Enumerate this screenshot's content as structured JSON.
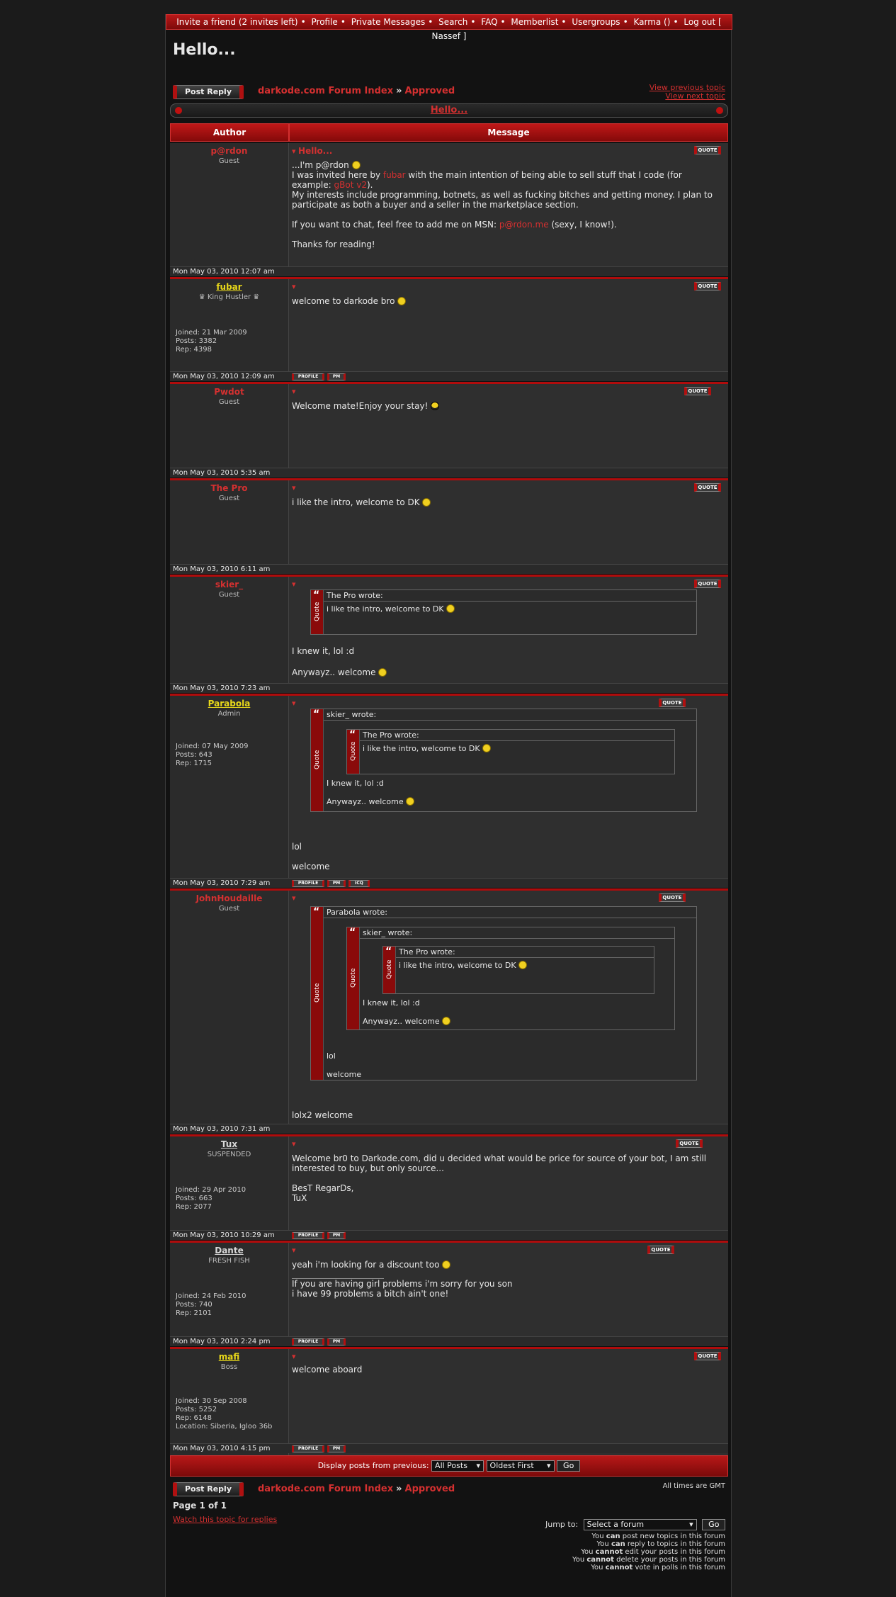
{
  "topnav": {
    "items": [
      "Invite a friend (2 invites left)",
      "Profile",
      "Private Messages",
      "Search",
      "FAQ",
      "Memberlist",
      "Usergroups",
      "Karma ()",
      "Log out [ Nassef ]"
    ]
  },
  "page_title": "Hello...",
  "post_reply_label": "Post Reply",
  "breadcrumb": {
    "forum_index": "darkode.com Forum Index",
    "separator": "»",
    "forum": "Approved"
  },
  "prev_topic": "View previous topic",
  "next_topic": "View next topic",
  "topic_title": "Hello...",
  "headers": {
    "author": "Author",
    "message": "Message"
  },
  "quote_label": "QUOTE",
  "profile_label": "PROFILE",
  "pm_label": "PM",
  "icq_label": "ICQ",
  "quote_word": "Quote",
  "posts": [
    {
      "author": "p@rdon",
      "rank": "Guest",
      "date": "Mon May 03, 2010 12:07 am",
      "subject": "Hello..."
    },
    {
      "author": "fubar",
      "rank": "♛ King Hustler ♛",
      "joined": "Joined: 21 Mar 2009",
      "posts": "Posts: 3382",
      "rep": "Rep: 4398",
      "date": "Mon May 03, 2010 12:09 am",
      "text": "welcome to darkode bro"
    },
    {
      "author": "Pwdot",
      "rank": "Guest",
      "date": "Mon May 03, 2010 5:35 am",
      "text": "Welcome mate!Enjoy your stay!"
    },
    {
      "author": "The Pro",
      "rank": "Guest",
      "date": "Mon May 03, 2010 6:11 am",
      "text": "i like the intro, welcome to DK"
    },
    {
      "author": "skier_",
      "rank": "Guest",
      "date": "Mon May 03, 2010 7:23 am",
      "text1": "I knew it, lol :d",
      "text2": "Anywayz.. welcome"
    },
    {
      "author": "Parabola",
      "rank": "Admin",
      "joined": "Joined: 07 May 2009",
      "posts": "Posts: 643",
      "rep": "Rep: 1715",
      "date": "Mon May 03, 2010 7:29 am",
      "text1": "lol",
      "text2": "welcome"
    },
    {
      "author": "JohnHoudaille",
      "rank": "Guest",
      "date": "Mon May 03, 2010 7:31 am",
      "text": "lolx2 welcome"
    },
    {
      "author": "Tux",
      "rank": "SUSPENDED",
      "joined": "Joined: 29 Apr 2010",
      "posts": "Posts: 663",
      "rep": "Rep: 2077",
      "date": "Mon May 03, 2010 10:29 am",
      "text1": "Welcome br0 to Darkode.com, did u decided what would be price for source of your bot, I am still interested to buy, but only source...",
      "text2": "BesT RegarDs,",
      "text3": "TuX"
    },
    {
      "author": "Dante",
      "rank": "FRESH FISH",
      "joined": "Joined: 24 Feb 2010",
      "posts": "Posts: 740",
      "rep": "Rep: 2101",
      "date": "Mon May 03, 2010 2:24 pm",
      "text": "yeah i'm looking for a discount too",
      "sig1": "If you are having girl problems i'm sorry for you son",
      "sig2": "i have 99 problems a bitch ain't one!"
    },
    {
      "author": "mafi",
      "rank": "Boss",
      "joined": "Joined: 30 Sep 2008",
      "posts": "Posts: 5252",
      "rep": "Rep: 6148",
      "location": "Location: Siberia, Igloo 36b",
      "date": "Mon May 03, 2010 4:15 pm",
      "text": "welcome aboard"
    }
  ],
  "intro": {
    "line1": "...I'm p@rdon",
    "line2a": "I was invited here by ",
    "line2link": "fubar",
    "line2b": " with the main intention of being able to sell stuff that I code (for example: ",
    "line2link2": "gBot v2",
    "line2c": ").",
    "line3": "My interests include programming, botnets, as well as fucking bitches and getting money. I plan to participate as both a buyer and a seller in the marketplace section.",
    "line4a": "If you want to chat, feel free to add me on MSN: ",
    "line4link": "p@rdon.me",
    "line4b": " (sexy, I know!).",
    "line5": "Thanks for reading!"
  },
  "quotes": {
    "pro_wrote": "The Pro wrote:",
    "skier_wrote": "skier_ wrote:",
    "parabola_wrote": "Parabola wrote:"
  },
  "sort": {
    "label": "Display posts from previous:",
    "filter": "All Posts",
    "order": "Oldest First",
    "go": "Go"
  },
  "timezone": "All times are GMT",
  "pagination": "Page 1 of 1",
  "watch": "Watch this topic for replies",
  "jump": {
    "label": "Jump to:",
    "placeholder": "Select a forum",
    "go": "Go"
  },
  "perms": [
    {
      "a": "You ",
      "b": "can",
      "c": " post new topics in this forum"
    },
    {
      "a": "You ",
      "b": "can",
      "c": " reply to topics in this forum"
    },
    {
      "a": "You ",
      "b": "cannot",
      "c": " edit your posts in this forum"
    },
    {
      "a": "You ",
      "b": "cannot",
      "c": " delete your posts in this forum"
    },
    {
      "a": "You ",
      "b": "cannot",
      "c": " vote in polls in this forum"
    }
  ]
}
